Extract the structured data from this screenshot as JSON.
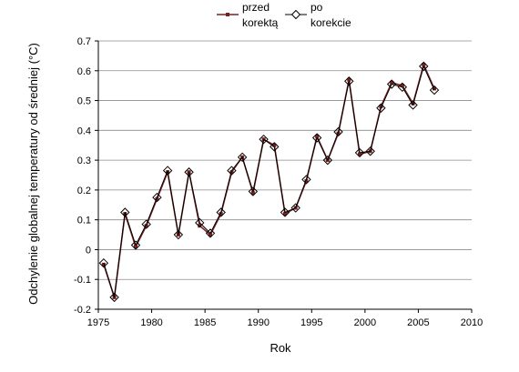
{
  "chart_data": {
    "type": "line",
    "title": "",
    "xlabel": "Rok",
    "ylabel": "Odchylenie globalnej temperatury od średniej (°C)",
    "xlim": [
      1975,
      2010
    ],
    "ylim": [
      -0.2,
      0.7
    ],
    "x_ticks": [
      "1975",
      "1980",
      "1985",
      "1990",
      "1995",
      "2000",
      "2005",
      "2010"
    ],
    "y_ticks": [
      "-0.2",
      "-0.1",
      "0",
      "0.1",
      "0.2",
      "0.3",
      "0.4",
      "0.5",
      "0.6",
      "0.7"
    ],
    "grid": "horizontal",
    "legend_position": "top-center",
    "x": [
      1975.5,
      1976.5,
      1977.5,
      1978.5,
      1979.5,
      1980.5,
      1981.5,
      1982.5,
      1983.5,
      1984.5,
      1985.5,
      1986.5,
      1987.5,
      1988.5,
      1989.5,
      1990.5,
      1991.5,
      1992.5,
      1993.5,
      1994.5,
      1995.5,
      1996.5,
      1997.5,
      1998.5,
      1999.5,
      2000.5,
      2001.5,
      2002.5,
      2003.5,
      2004.5,
      2005.5,
      2006.5
    ],
    "series": [
      {
        "name": "przed korektą",
        "color": "#7b2020",
        "marker": "small-square",
        "values": [
          -0.05,
          -0.16,
          0.12,
          0.01,
          0.08,
          0.17,
          0.26,
          0.05,
          0.26,
          0.08,
          0.05,
          0.12,
          0.26,
          0.31,
          0.19,
          0.37,
          0.35,
          0.12,
          0.14,
          0.23,
          0.38,
          0.3,
          0.39,
          0.57,
          0.32,
          0.33,
          0.48,
          0.56,
          0.55,
          0.49,
          0.62,
          0.54
        ]
      },
      {
        "name": "po korekcie",
        "color": "#000000",
        "marker": "open-diamond",
        "values": [
          -0.045,
          -0.16,
          0.125,
          0.015,
          0.085,
          0.175,
          0.265,
          0.05,
          0.26,
          0.09,
          0.055,
          0.125,
          0.265,
          0.31,
          0.195,
          0.37,
          0.345,
          0.125,
          0.14,
          0.235,
          0.375,
          0.3,
          0.395,
          0.565,
          0.325,
          0.33,
          0.475,
          0.555,
          0.545,
          0.485,
          0.615,
          0.535
        ]
      }
    ],
    "legend": {
      "entries": [
        {
          "lines": [
            "przed",
            "korektą"
          ]
        },
        {
          "lines": [
            "po",
            "korekcie"
          ]
        }
      ]
    }
  }
}
